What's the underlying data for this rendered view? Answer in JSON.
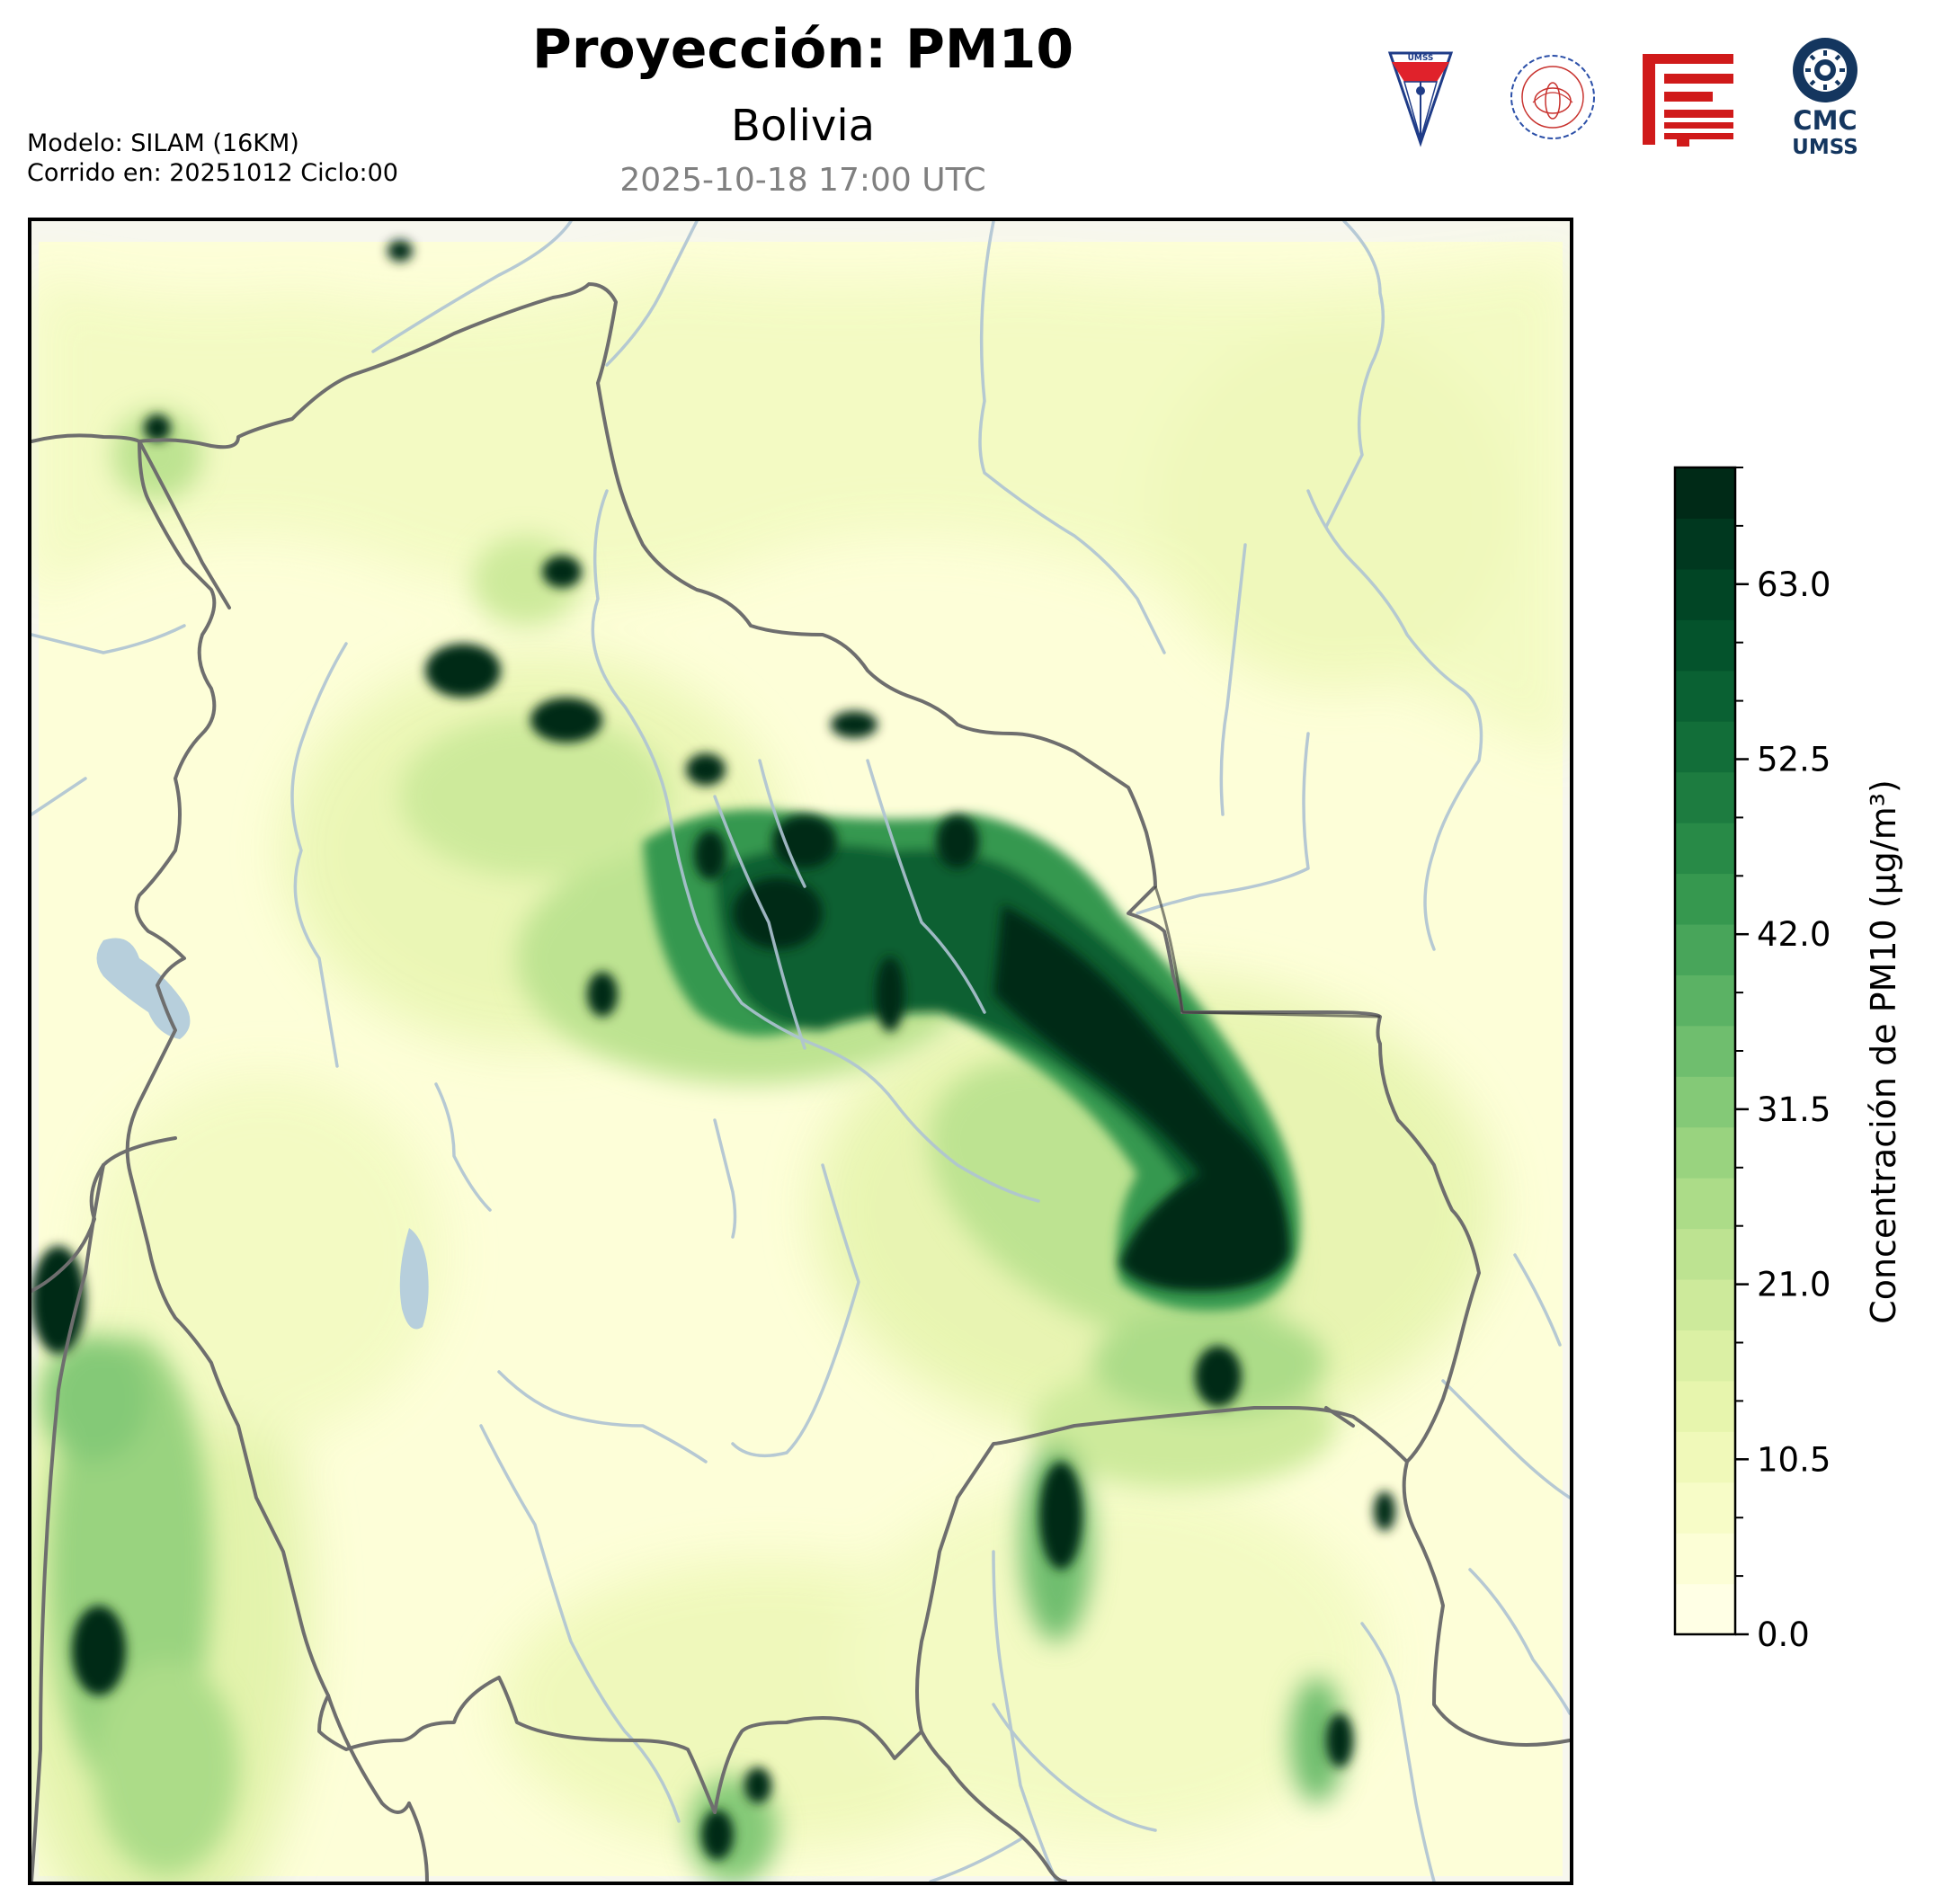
{
  "header": {
    "title": "Proyección: PM10",
    "region": "Bolivia",
    "datetime": "2025-10-18 17:00 UTC"
  },
  "model_info": {
    "model": "Modelo: SILAM (16KM)",
    "run": "Corrido en: 20251012 Ciclo:00"
  },
  "logos": {
    "umss_seal": "UMSS",
    "physics_dept": "DEPARTAMENTO DE FÍSICA",
    "fcyt_logo": "fcyt-emblem",
    "cmc_top": "CMC",
    "cmc_bottom": "UMSS"
  },
  "colorbar": {
    "label": "Concentración de PM10 (μg/m³)",
    "min": 0.0,
    "max": 70.0,
    "level_step": 3.5,
    "ticks": [
      "0.0",
      "10.5",
      "21.0",
      "31.5",
      "42.0",
      "52.5",
      "63.0"
    ],
    "colors": [
      "#ffffe5",
      "#fcfed6",
      "#f7fcc7",
      "#f0f9b9",
      "#e7f5ad",
      "#dbf0a4",
      "#cdea9b",
      "#bde391",
      "#acdc88",
      "#99d37f",
      "#84c977",
      "#6fbe6e",
      "#5bb264",
      "#48a55a",
      "#36984f",
      "#288a47",
      "#1d7c40",
      "#126e39",
      "#0a6133",
      "#04532c",
      "#014525",
      "#00381f",
      "#002a17"
    ]
  },
  "map": {
    "region": "Bolivia",
    "field": "PM10 concentration",
    "colormap": "YlGn",
    "features": [
      "country-borders",
      "rivers",
      "lakes"
    ]
  }
}
